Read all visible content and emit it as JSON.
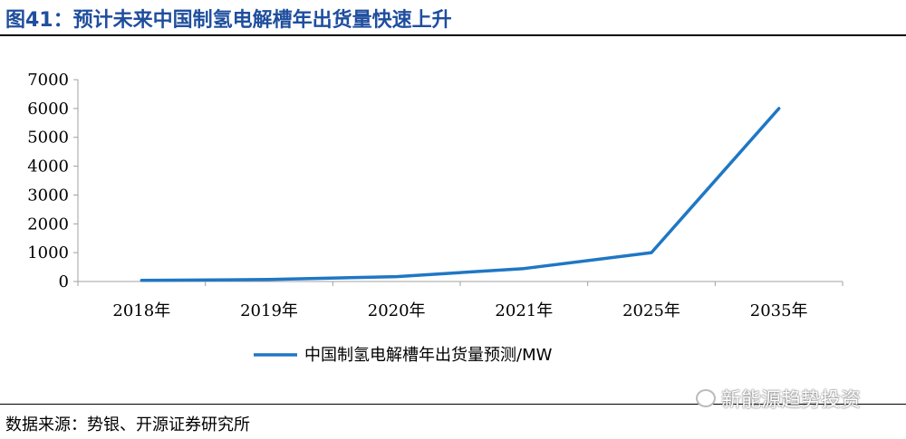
{
  "figure": {
    "title": "图41：预计未来中国制氢电解槽年出货量快速上升",
    "source": "数据来源：势银、开源证券研究所",
    "watermark": "新能源趋势投资"
  },
  "colors": {
    "line": "#1f77c4",
    "title": "#1f4e9e"
  },
  "chart_data": {
    "type": "line",
    "categories": [
      "2018年",
      "2019年",
      "2020年",
      "2021年",
      "2025年",
      "2035年"
    ],
    "series": [
      {
        "name": "中国制氢电解槽年出货量预测/MW",
        "values": [
          40,
          70,
          170,
          450,
          1000,
          6000
        ]
      }
    ],
    "ylim": [
      0,
      7000
    ],
    "yticks": [
      "0",
      "1000",
      "2000",
      "3000",
      "4000",
      "5000",
      "6000",
      "7000"
    ],
    "legend_position": "bottom-center",
    "grid": false
  }
}
